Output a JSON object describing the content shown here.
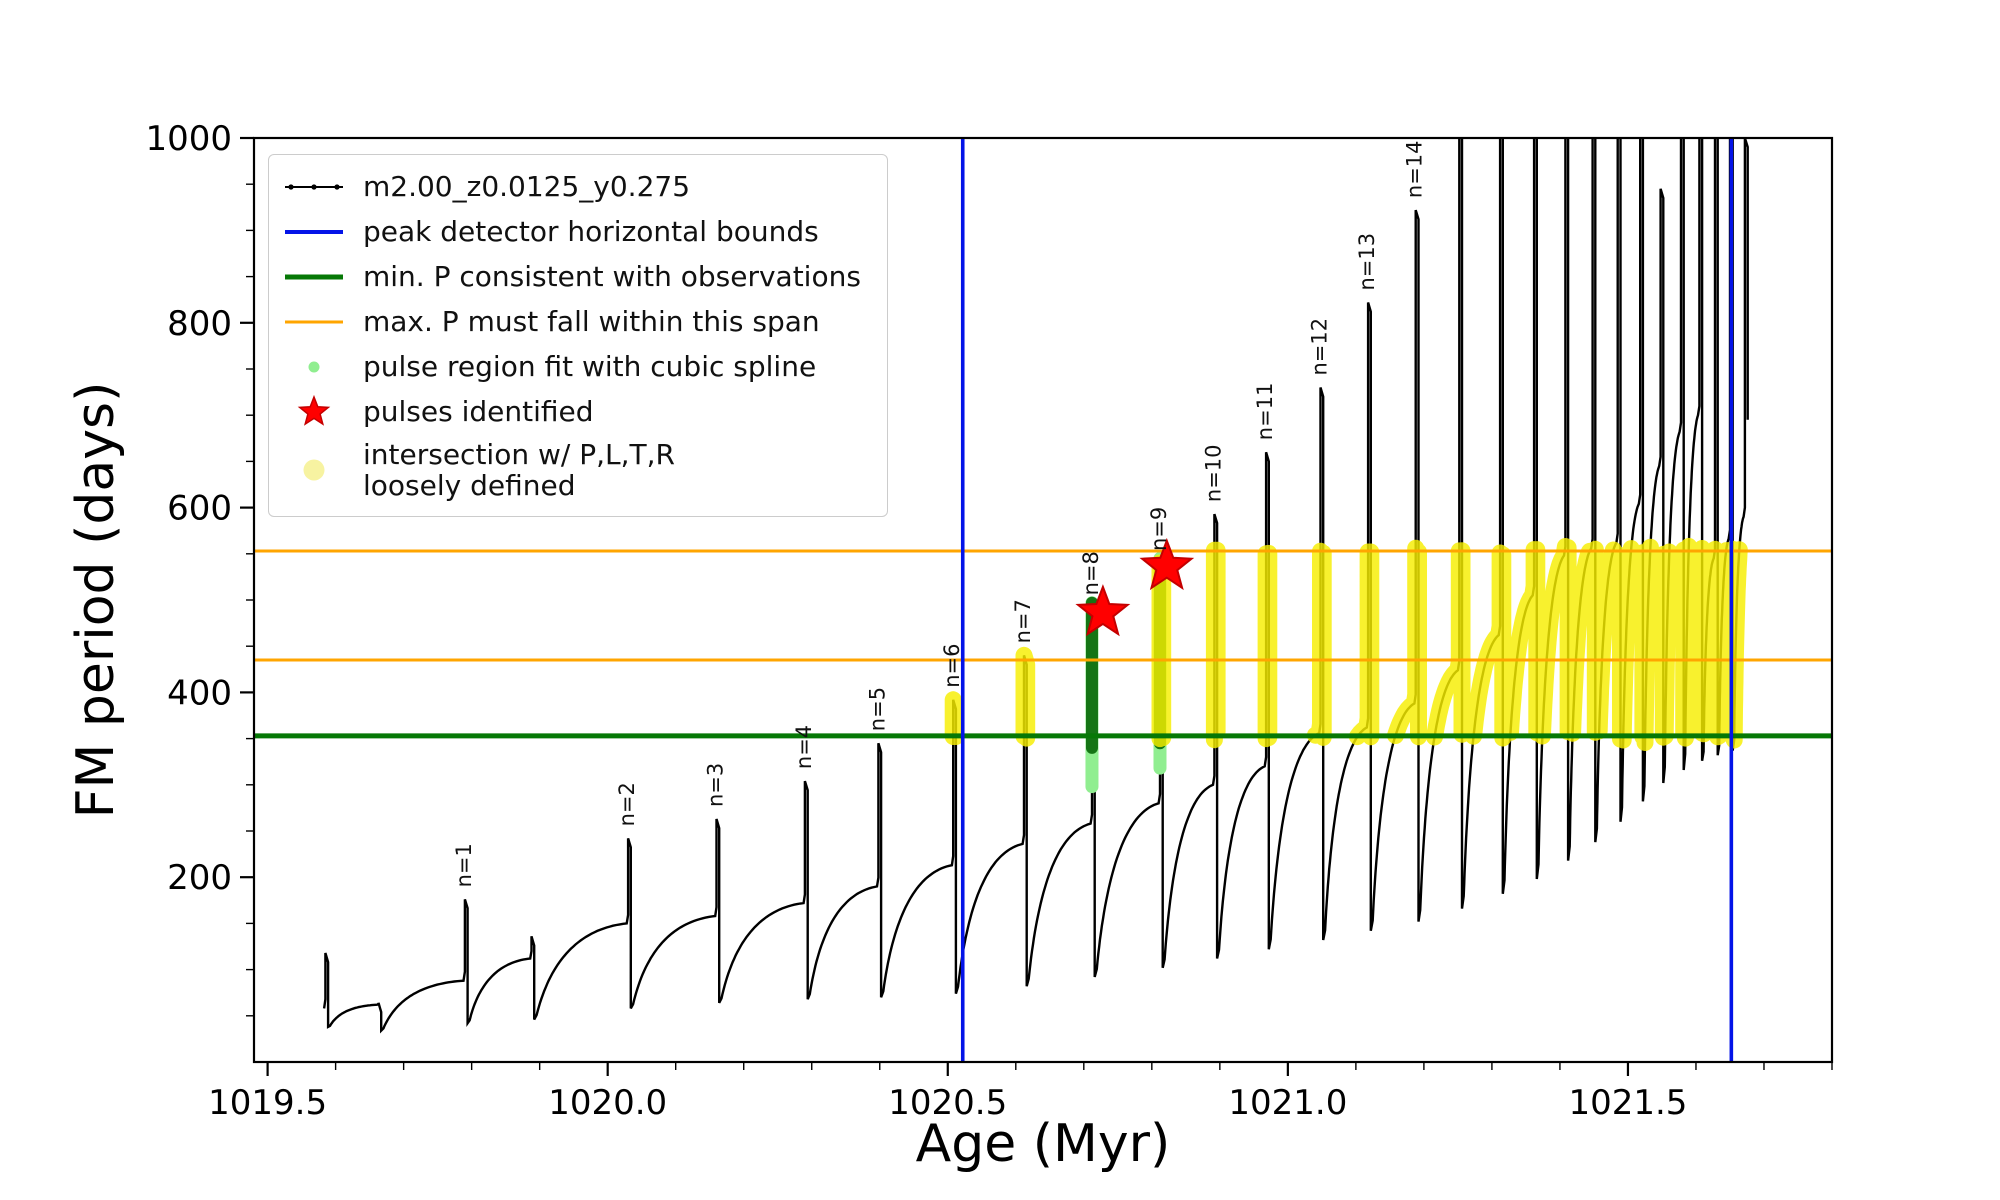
{
  "figure": {
    "background": "#ffffff",
    "colors": {
      "track": "#000000",
      "peak_bounds_blue": "#0414e8",
      "min_p_green": "#067806",
      "max_p_orange": "#ffa500",
      "pulse_region_lightgreen": "#90ee90",
      "pulse_region_dense_green": "#157515",
      "pulses_red": "#ff0000",
      "pulses_red_edge": "#c40000",
      "intersection_yellow": "#f6ee00",
      "intersection_pale_yellow": "#f7f3a1"
    }
  },
  "legend": {
    "items": [
      {
        "label": "m2.00_z0.0125_y0.275",
        "marker": "line-dots",
        "color": "#000000",
        "width": 2
      },
      {
        "label": "peak detector horizontal bounds",
        "marker": "line",
        "color": "#0414e8",
        "width": 4
      },
      {
        "label": "min. P consistent with observations",
        "marker": "line",
        "color": "#067806",
        "width": 5
      },
      {
        "label": "max. P must fall within this span",
        "marker": "line",
        "color": "#ffa500",
        "width": 3
      },
      {
        "label": "pulse region fit with cubic spline",
        "marker": "dot-small",
        "color": "#90ee90"
      },
      {
        "label": "pulses identified",
        "marker": "star",
        "color": "#ff0000"
      },
      {
        "label": "intersection w/ P,L,T,R\nloosely defined",
        "marker": "dot",
        "color": "#f7f3a1"
      }
    ]
  },
  "chart_data": {
    "type": "line",
    "title": "",
    "xlabel": "Age (Myr)",
    "ylabel": "FM period (days)",
    "xlim": [
      1019.48,
      1021.8
    ],
    "ylim": [
      0,
      1000
    ],
    "xticks": [
      1019.5,
      1020.0,
      1020.5,
      1021.0,
      1021.5
    ],
    "xtick_labels": [
      "1019.5",
      "1020.0",
      "1020.5",
      "1021.0",
      "1021.5"
    ],
    "yticks": [
      200,
      400,
      600,
      800,
      1000
    ],
    "ytick_labels": [
      "200",
      "400",
      "600",
      "800",
      "1000"
    ],
    "x_minor_step": 0.1,
    "y_minor_step": 50,
    "grid": false,
    "legend_position": "upper left",
    "series_label": "m2.00_z0.0125_y0.275",
    "track_start": {
      "age": 1019.583,
      "period": 58
    },
    "cycles": [
      {
        "a": 1019.585,
        "p": 118,
        "m": 38,
        "s": 62
      },
      {
        "a": 1019.663,
        "p": 64,
        "m": 34,
        "s": 88
      },
      {
        "a": 1019.79,
        "p": 176,
        "m": 42,
        "s": 112
      },
      {
        "a": 1019.888,
        "p": 136,
        "m": 46,
        "s": 150
      },
      {
        "a": 1020.03,
        "p": 242,
        "m": 58,
        "s": 158
      },
      {
        "a": 1020.16,
        "p": 263,
        "m": 64,
        "s": 172
      },
      {
        "a": 1020.29,
        "p": 304,
        "m": 68,
        "s": 190
      },
      {
        "a": 1020.398,
        "p": 345,
        "m": 70,
        "s": 213
      },
      {
        "a": 1020.508,
        "p": 392,
        "m": 74,
        "s": 236
      },
      {
        "a": 1020.612,
        "p": 440,
        "m": 82,
        "s": 258
      },
      {
        "a": 1020.712,
        "p": 492,
        "m": 92,
        "s": 280
      },
      {
        "a": 1020.812,
        "p": 540,
        "m": 102,
        "s": 300
      },
      {
        "a": 1020.892,
        "p": 593,
        "m": 112,
        "s": 320
      },
      {
        "a": 1020.968,
        "p": 660,
        "m": 122,
        "s": 356
      },
      {
        "a": 1021.048,
        "p": 730,
        "m": 132,
        "s": 362
      },
      {
        "a": 1021.118,
        "p": 822,
        "m": 142,
        "s": 388
      },
      {
        "a": 1021.188,
        "p": 922,
        "m": 152,
        "s": 424
      },
      {
        "a": 1021.252,
        "p": 1020,
        "m": 166,
        "s": 462
      },
      {
        "a": 1021.312,
        "p": 1025,
        "m": 182,
        "s": 505
      },
      {
        "a": 1021.362,
        "p": 1030,
        "m": 198,
        "s": 548
      },
      {
        "a": 1021.408,
        "p": 1035,
        "m": 218,
        "s": 556
      },
      {
        "a": 1021.448,
        "p": 1040,
        "m": 238,
        "s": 562
      },
      {
        "a": 1021.485,
        "p": 1045,
        "m": 260,
        "s": 604
      },
      {
        "a": 1021.518,
        "p": 1050,
        "m": 282,
        "s": 645
      },
      {
        "a": 1021.548,
        "p": 945,
        "m": 302,
        "s": 682
      },
      {
        "a": 1021.578,
        "p": 1050,
        "m": 316,
        "s": 700
      },
      {
        "a": 1021.605,
        "p": 1055,
        "m": 326,
        "s": 545
      },
      {
        "a": 1021.628,
        "p": 1060,
        "m": 332,
        "s": 566
      },
      {
        "a": 1021.65,
        "p": 1060,
        "m": 337,
        "s": 590
      },
      {
        "a": 1021.672,
        "p": 1000,
        "m": 695,
        "end": true
      }
    ],
    "pulse_labels": [
      {
        "n": "n=1",
        "age": 1019.79,
        "period": 176
      },
      {
        "n": "n=2",
        "age": 1020.03,
        "period": 242
      },
      {
        "n": "n=3",
        "age": 1020.16,
        "period": 263
      },
      {
        "n": "n=4",
        "age": 1020.29,
        "period": 304
      },
      {
        "n": "n=5",
        "age": 1020.398,
        "period": 345
      },
      {
        "n": "n=6",
        "age": 1020.508,
        "period": 392
      },
      {
        "n": "n=7",
        "age": 1020.612,
        "period": 440
      },
      {
        "n": "n=8",
        "age": 1020.712,
        "period": 492
      },
      {
        "n": "n=9",
        "age": 1020.812,
        "period": 540
      },
      {
        "n": "n=10",
        "age": 1020.892,
        "period": 593
      },
      {
        "n": "n=11",
        "age": 1020.968,
        "period": 660
      },
      {
        "n": "n=12",
        "age": 1021.048,
        "period": 730
      },
      {
        "n": "n=13",
        "age": 1021.118,
        "period": 822
      },
      {
        "n": "n=14",
        "age": 1021.188,
        "period": 922
      }
    ],
    "vlines": [
      1020.522,
      1021.652
    ],
    "hlines": [
      {
        "y": 353,
        "color": "#067806",
        "width": 5
      },
      {
        "y": 435,
        "color": "#ffa500",
        "width": 3
      },
      {
        "y": 553,
        "color": "#ffa500",
        "width": 3
      }
    ],
    "yellow_band": {
      "p_min": 353,
      "p_max": 553,
      "age_min": 1020.497,
      "age_max": 1021.665,
      "exclude_ages": [
        [
          1020.7,
          1020.724
        ]
      ]
    },
    "green_columns": [
      {
        "age": 1020.712,
        "light": [
          298,
          497
        ],
        "dense": [
          340,
          497
        ]
      },
      {
        "age": 1020.812,
        "light": [
          318,
          545
        ],
        "dense": [
          345,
          540
        ]
      }
    ],
    "stars": [
      {
        "age": 1020.728,
        "period": 486
      },
      {
        "age": 1020.822,
        "period": 536
      }
    ]
  }
}
